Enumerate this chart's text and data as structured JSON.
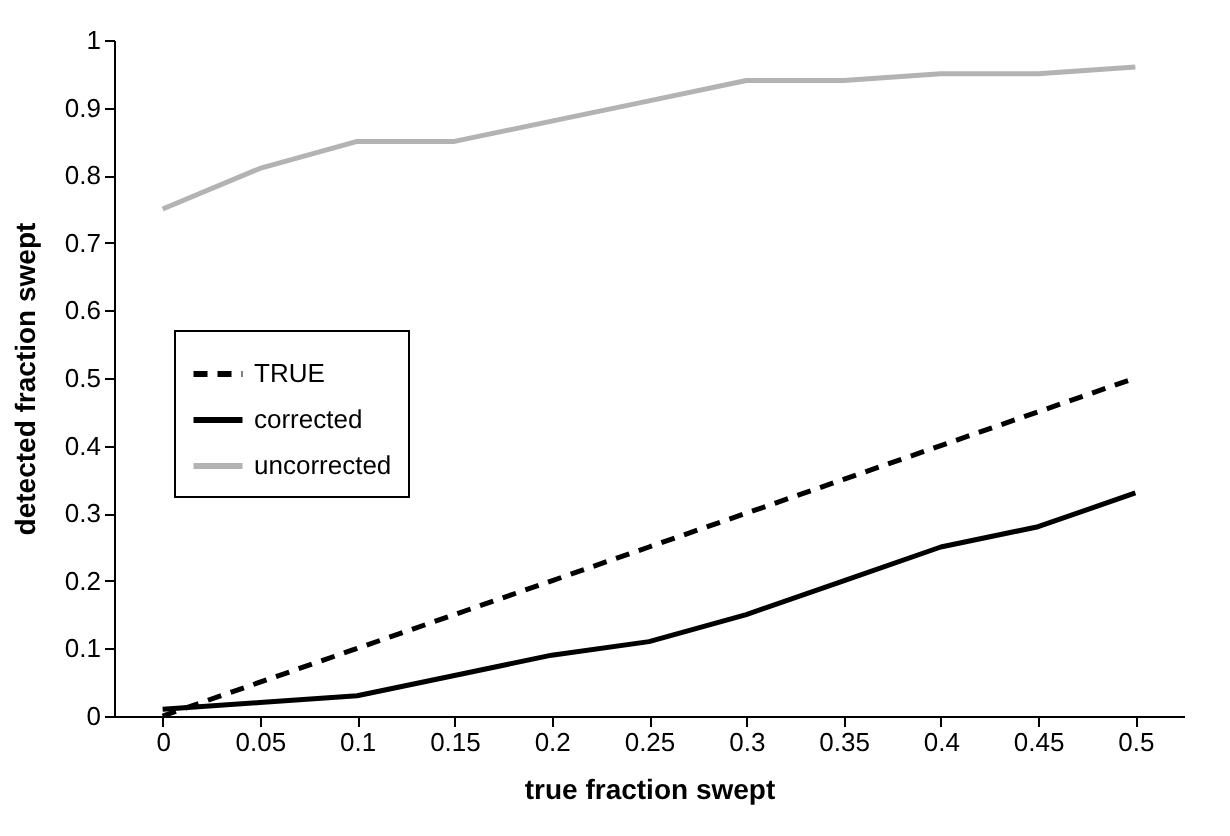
{
  "chart_data": {
    "type": "line",
    "xlabel": "true fraction swept",
    "ylabel": "detected fraction swept",
    "categories": [
      "0",
      "0.05",
      "0.1",
      "0.15",
      "0.2",
      "0.25",
      "0.3",
      "0.35",
      "0.4",
      "0.45",
      "0.5"
    ],
    "series": [
      {
        "name": "TRUE",
        "color": "#000000",
        "line_style": "dashed",
        "values": [
          0,
          0.05,
          0.1,
          0.15,
          0.2,
          0.25,
          0.3,
          0.35,
          0.4,
          0.45,
          0.5
        ]
      },
      {
        "name": "corrected",
        "color": "#000000",
        "line_style": "solid",
        "values": [
          0.01,
          0.02,
          0.03,
          0.06,
          0.09,
          0.11,
          0.15,
          0.2,
          0.25,
          0.28,
          0.33
        ]
      },
      {
        "name": "uncorrected",
        "color": "#b3b3b3",
        "line_style": "solid",
        "values": [
          0.75,
          0.81,
          0.85,
          0.85,
          0.88,
          0.91,
          0.94,
          0.94,
          0.95,
          0.95,
          0.96
        ]
      }
    ],
    "ylim": [
      0,
      1
    ],
    "yticks": [
      0,
      0.1,
      0.2,
      0.3,
      0.4,
      0.5,
      0.6,
      0.7,
      0.8,
      0.9,
      1
    ],
    "grid": false,
    "legend": "left",
    "marker": "none"
  }
}
